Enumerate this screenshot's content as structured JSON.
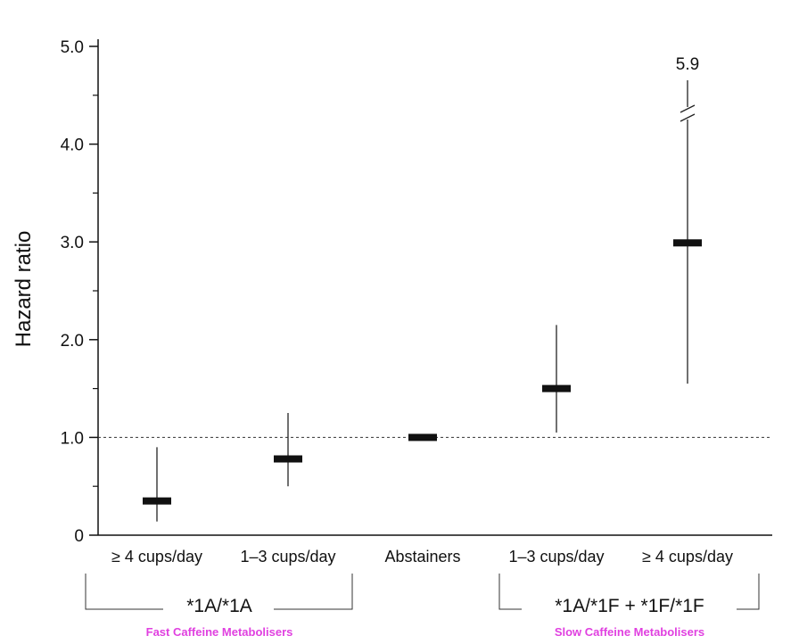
{
  "chart_data": {
    "type": "errorbar",
    "ylabel": "Hazard ratio",
    "ylim": [
      0,
      5.0
    ],
    "yticks": [
      "0",
      "1.0",
      "2.0",
      "3.0",
      "4.0",
      "5.0"
    ],
    "reference_line": 1.0,
    "categories": [
      "≥ 4 cups/day",
      "1–3 cups/day",
      "Abstainers",
      "1–3 cups/day",
      "≥ 4 cups/day"
    ],
    "points": [
      {
        "hr": 0.35,
        "lower": 0.14,
        "upper": 0.9
      },
      {
        "hr": 0.78,
        "lower": 0.5,
        "upper": 1.25
      },
      {
        "hr": 1.0,
        "lower": null,
        "upper": null
      },
      {
        "hr": 1.5,
        "lower": 1.05,
        "upper": 2.15
      },
      {
        "hr": 2.99,
        "lower": 1.55,
        "upper": 5.9
      }
    ],
    "annotation": "5.9",
    "groups": [
      {
        "label": "*1A/*1A",
        "sublabel": "Fast Caffeine Metabolisers",
        "members": [
          0,
          1
        ]
      },
      {
        "label": "*1A/*1F + *1F/*1F",
        "sublabel": "Slow Caffeine Metabolisers",
        "members": [
          3,
          4
        ]
      }
    ],
    "colors": {
      "marker": "#111111",
      "axis": "#111111",
      "sublabel": "#e040e0"
    }
  }
}
